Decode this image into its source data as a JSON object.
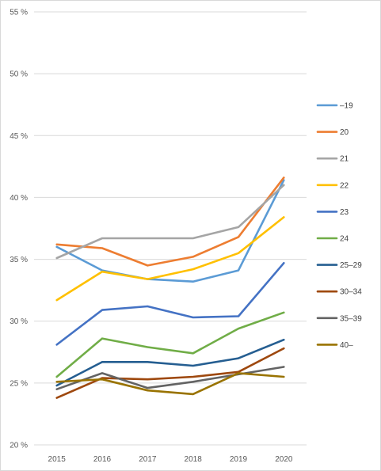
{
  "chart_data": {
    "type": "line",
    "title": "",
    "xlabel": "",
    "ylabel": "",
    "categories": [
      "2015",
      "2016",
      "2017",
      "2018",
      "2019",
      "2020"
    ],
    "ylim": [
      20,
      55
    ],
    "yticks": [
      20,
      25,
      30,
      35,
      40,
      45,
      50,
      55
    ],
    "ytick_labels": [
      "20 %",
      "25 %",
      "30 %",
      "35 %",
      "40 %",
      "45 %",
      "50 %",
      "55 %"
    ],
    "grid": "horizontal",
    "legend_position": "right",
    "series": [
      {
        "name": "–19",
        "color": "#5B9BD5",
        "values": [
          36.0,
          34.1,
          33.4,
          33.2,
          34.1,
          41.4
        ]
      },
      {
        "name": "20",
        "color": "#ED7D31",
        "values": [
          36.2,
          35.9,
          34.5,
          35.2,
          36.8,
          41.6
        ]
      },
      {
        "name": "21",
        "color": "#A5A5A5",
        "values": [
          35.1,
          36.7,
          36.7,
          36.7,
          37.6,
          41.0
        ]
      },
      {
        "name": "22",
        "color": "#FFC000",
        "values": [
          31.7,
          34.0,
          33.4,
          34.2,
          35.5,
          38.4
        ]
      },
      {
        "name": "23",
        "color": "#4472C4",
        "values": [
          28.1,
          30.9,
          31.2,
          30.3,
          30.4,
          34.7
        ]
      },
      {
        "name": "24",
        "color": "#70AD47",
        "values": [
          25.5,
          28.6,
          27.9,
          27.4,
          29.4,
          30.7
        ]
      },
      {
        "name": "25–29",
        "color": "#255E91",
        "values": [
          24.8,
          26.7,
          26.7,
          26.4,
          27.0,
          28.5
        ]
      },
      {
        "name": "30–34",
        "color": "#9E480E",
        "values": [
          23.8,
          25.4,
          25.3,
          25.5,
          25.9,
          27.8
        ]
      },
      {
        "name": "35–39",
        "color": "#636363",
        "values": [
          24.5,
          25.8,
          24.6,
          25.1,
          25.7,
          26.3
        ]
      },
      {
        "name": "40–",
        "color": "#997300",
        "values": [
          25.1,
          25.3,
          24.4,
          24.1,
          25.8,
          25.5
        ]
      }
    ]
  }
}
